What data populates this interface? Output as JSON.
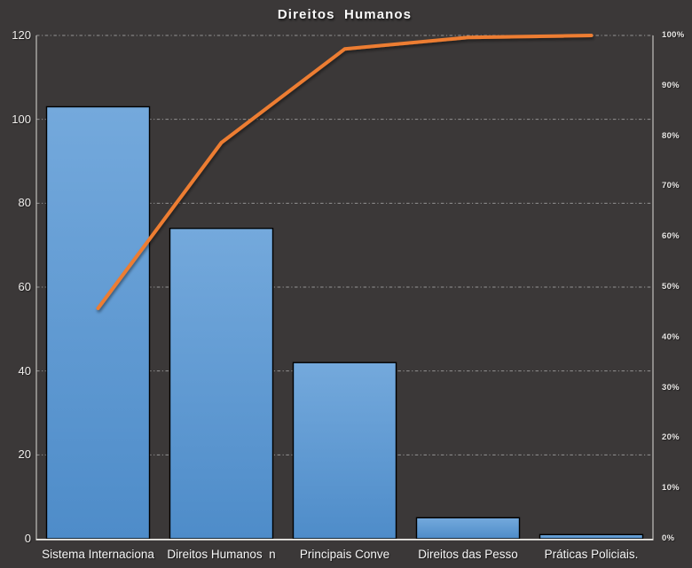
{
  "chart_data": {
    "type": "bar",
    "variant": "pareto",
    "title": "Direitos  Humanos",
    "categories": [
      "Sistema Internaciona",
      "Direitos Humanos  n",
      "Principais Conve",
      "Direitos das Pesso",
      "Práticas Policiais."
    ],
    "bar_values": [
      103,
      74,
      42,
      5,
      1
    ],
    "cumulative_line_percent": [
      45.8,
      78.7,
      97.3,
      99.6,
      100
    ],
    "axes": {
      "y_left": {
        "min": 0,
        "max": 120,
        "tick_step": 20,
        "tick_values": [
          120,
          100,
          80,
          60,
          40,
          20,
          0
        ],
        "tick_labels": [
          "120",
          "100",
          "80",
          "60",
          "40",
          "20",
          "0"
        ]
      },
      "y_right": {
        "min": 0,
        "max": 100,
        "tick_step": 10,
        "tick_values": [
          100,
          90,
          80,
          70,
          60,
          50,
          40,
          30,
          20,
          10,
          0
        ],
        "tick_labels": [
          "100%",
          "90%",
          "80%",
          "70%",
          "60%",
          "50%",
          "40%",
          "30%",
          "20%",
          "10%",
          "0%"
        ]
      }
    },
    "grid": {
      "horizontal": true,
      "style": "dash-dot",
      "at_left_axis_step": 20
    },
    "legend": "none",
    "colors": {
      "background": "#3b3838",
      "bar_fill_top": "#74a9dc",
      "bar_fill_bottom": "#4e8cc9",
      "bar_border": "#000000",
      "line": "#ed7d31",
      "gridline": "#cccccc",
      "axis_line": "#c2c0be",
      "baseline": "#f0eee9",
      "text": "#f2f2f2"
    }
  }
}
